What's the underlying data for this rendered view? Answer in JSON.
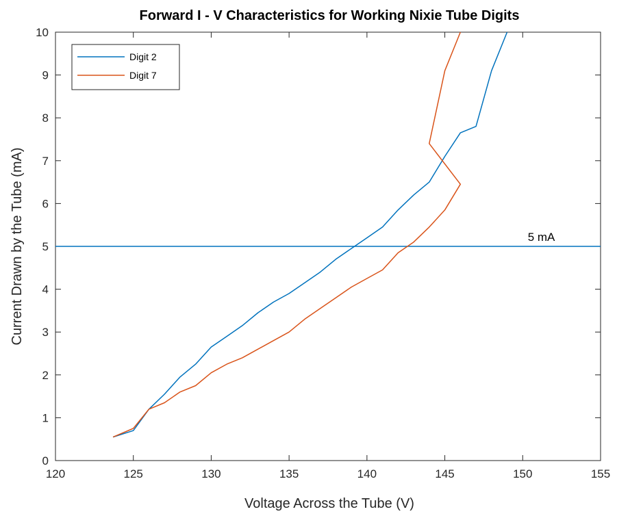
{
  "chart_data": {
    "type": "line",
    "title": "Forward I - V Characteristics for Working Nixie Tube Digits",
    "xlabel": "Voltage Across the Tube (V)",
    "ylabel": "Current Drawn by the Tube (mA)",
    "xlim": [
      120,
      155
    ],
    "ylim": [
      0,
      10
    ],
    "xticks": [
      120,
      125,
      130,
      135,
      140,
      145,
      150,
      155
    ],
    "yticks": [
      0,
      1,
      2,
      3,
      4,
      5,
      6,
      7,
      8,
      9,
      10
    ],
    "grid": false,
    "legend_position": "top-left",
    "series": [
      {
        "name": "Digit 2",
        "color": "#0072BD",
        "x": [
          123.7,
          125.0,
          126.0,
          127.0,
          128.0,
          129.0,
          130.0,
          131.0,
          132.0,
          133.0,
          134.0,
          135.0,
          136.0,
          137.0,
          138.0,
          139.0,
          140.0,
          141.0,
          142.0,
          143.0,
          144.0,
          145.0,
          146.0,
          147.0,
          148.0,
          149.0
        ],
        "y": [
          0.55,
          0.7,
          1.2,
          1.55,
          1.95,
          2.25,
          2.65,
          2.9,
          3.15,
          3.45,
          3.7,
          3.9,
          4.15,
          4.4,
          4.7,
          4.95,
          5.2,
          5.45,
          5.85,
          6.2,
          6.5,
          7.1,
          7.65,
          7.8,
          9.1,
          10.0
        ]
      },
      {
        "name": "Digit 7",
        "color": "#D95319",
        "x": [
          123.7,
          125.0,
          126.0,
          127.0,
          128.0,
          129.0,
          130.0,
          131.0,
          132.0,
          133.0,
          134.0,
          135.0,
          136.0,
          137.0,
          138.0,
          139.0,
          140.0,
          141.0,
          142.0,
          143.0,
          144.0,
          145.0,
          146.0,
          144.0,
          145.0,
          146.0
        ],
        "y": [
          0.55,
          0.75,
          1.2,
          1.35,
          1.6,
          1.75,
          2.05,
          2.25,
          2.4,
          2.6,
          2.8,
          3.0,
          3.3,
          3.55,
          3.8,
          4.05,
          4.25,
          4.45,
          4.85,
          5.1,
          5.45,
          5.85,
          6.45,
          7.4,
          9.1,
          10.0
        ]
      }
    ],
    "reference_line": {
      "y": 5,
      "label": "5 mA",
      "label_x": 151.2,
      "color": "#0072BD"
    }
  }
}
